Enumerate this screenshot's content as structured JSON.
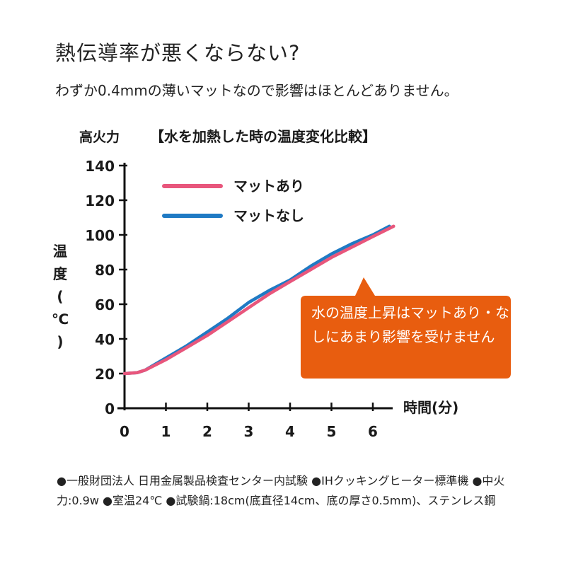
{
  "heading": "熱伝導率が悪くならない?",
  "subheading": "わずか0.4mmの薄いマットなので影響はほとんどありません。",
  "callout": "水の温度上昇はマットあり・なしにあまり影響を受けません",
  "footnote": "●一般財団法人 日用金属製品検査センター内試験 ●IHクッキングヒーター標準機 ●中火力:0.9w ●室温24℃ ●試験鍋:18cm(底直径14cm、底の厚さ0.5mm)、ステンレス鋼",
  "colors": {
    "with_mat": "#e8567c",
    "without_mat": "#1f7ac4",
    "callout": "#e85d0f"
  },
  "chart_data": {
    "type": "line",
    "corner_label": "高火力",
    "title": "【水を加熱した時の温度変化比較】",
    "xlabel": "時間(分)",
    "ylabel": "温度(℃)",
    "xlim": [
      0,
      6.6
    ],
    "ylim": [
      0,
      140
    ],
    "x_ticks": [
      "0",
      "1",
      "2",
      "3",
      "4",
      "5",
      "6"
    ],
    "y_ticks": [
      "0",
      "20",
      "40",
      "60",
      "80",
      "100",
      "120",
      "140"
    ],
    "legend_position": "top-left",
    "series": [
      {
        "name": "マットあり",
        "color": "#e8567c",
        "x": [
          0,
          0.3,
          0.5,
          1,
          1.5,
          2,
          2.5,
          3,
          3.5,
          4,
          4.5,
          5,
          5.5,
          6,
          6.5
        ],
        "y": [
          20,
          20.5,
          22,
          28,
          35,
          42,
          50,
          58,
          66,
          73,
          80,
          87,
          93,
          99,
          105
        ]
      },
      {
        "name": "マットなし",
        "color": "#1f7ac4",
        "x": [
          0,
          0.3,
          0.5,
          1,
          1.5,
          2,
          2.5,
          3,
          3.5,
          4,
          4.5,
          5,
          5.5,
          6,
          6.4
        ],
        "y": [
          20,
          20.5,
          22,
          29,
          36,
          44,
          52,
          61,
          68,
          74,
          82,
          89,
          95,
          100,
          105
        ]
      }
    ]
  }
}
